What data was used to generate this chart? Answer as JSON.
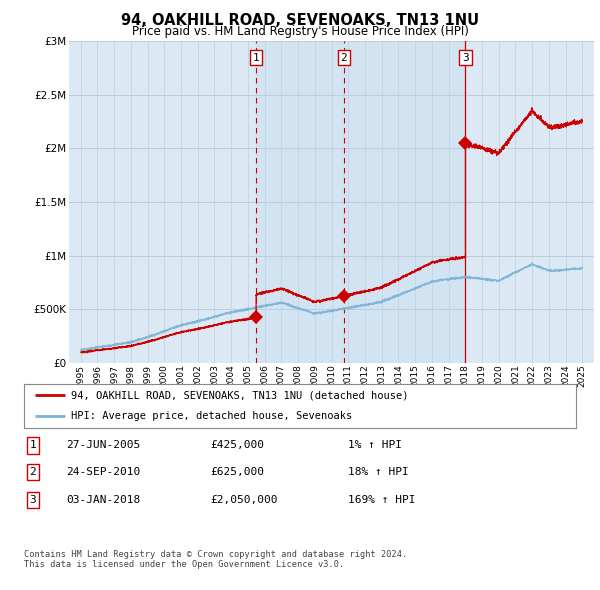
{
  "title": "94, OAKHILL ROAD, SEVENOAKS, TN13 1NU",
  "subtitle": "Price paid vs. HM Land Registry's House Price Index (HPI)",
  "ylim": [
    0,
    3000000
  ],
  "yticks": [
    0,
    500000,
    1000000,
    1500000,
    2000000,
    2500000,
    3000000
  ],
  "sale_dates": [
    2005.49,
    2010.73,
    2018.01
  ],
  "sale_prices": [
    425000,
    625000,
    2050000
  ],
  "sale_labels": [
    "1",
    "2",
    "3"
  ],
  "hpi_color": "#7ab3d4",
  "sale_color": "#cc0000",
  "vline_color": "#cc0000",
  "legend_entry1": "94, OAKHILL ROAD, SEVENOAKS, TN13 1NU (detached house)",
  "legend_entry2": "HPI: Average price, detached house, Sevenoaks",
  "table_rows": [
    {
      "num": "1",
      "date": "27-JUN-2005",
      "price": "£425,000",
      "hpi": "1% ↑ HPI"
    },
    {
      "num": "2",
      "date": "24-SEP-2010",
      "price": "£625,000",
      "hpi": "18% ↑ HPI"
    },
    {
      "num": "3",
      "date": "03-JAN-2018",
      "price": "£2,050,000",
      "hpi": "169% ↑ HPI"
    }
  ],
  "footnote": "Contains HM Land Registry data © Crown copyright and database right 2024.\nThis data is licensed under the Open Government Licence v3.0.",
  "background_color": "#ffffff",
  "plot_bg_color": "#dce9f5"
}
